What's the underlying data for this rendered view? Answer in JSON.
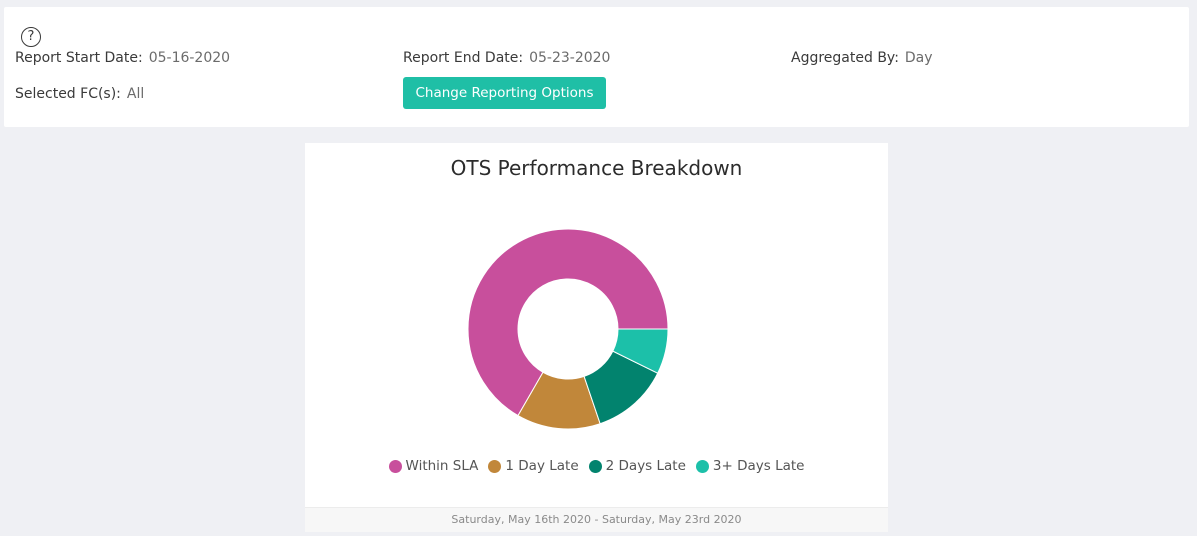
{
  "header": {
    "help_icon": "question-circle-icon",
    "report_start": {
      "label": "Report Start Date:",
      "value": "05-16-2020"
    },
    "report_end": {
      "label": "Report End Date:",
      "value": "05-23-2020"
    },
    "aggregated_by": {
      "label": "Aggregated By:",
      "value": "Day"
    },
    "selected_fcs": {
      "label": "Selected FC(s):",
      "value": "All"
    },
    "change_button_label": "Change Reporting Options",
    "accent_color": "#1fbfa6"
  },
  "chart": {
    "footer_text": "Saturday, May 16th 2020 - Saturday, May 23rd 2020"
  },
  "chart_data": {
    "type": "pie",
    "title": "OTS Performance Breakdown",
    "donut": true,
    "legend_position": "bottom",
    "categories": [
      "Within SLA",
      "1 Day Late",
      "2 Days Late",
      "3+ Days Late"
    ],
    "values": [
      64,
      13,
      12,
      7
    ],
    "colors": [
      "#c84f9c",
      "#c1873a",
      "#02836e",
      "#1cc0a9"
    ]
  }
}
